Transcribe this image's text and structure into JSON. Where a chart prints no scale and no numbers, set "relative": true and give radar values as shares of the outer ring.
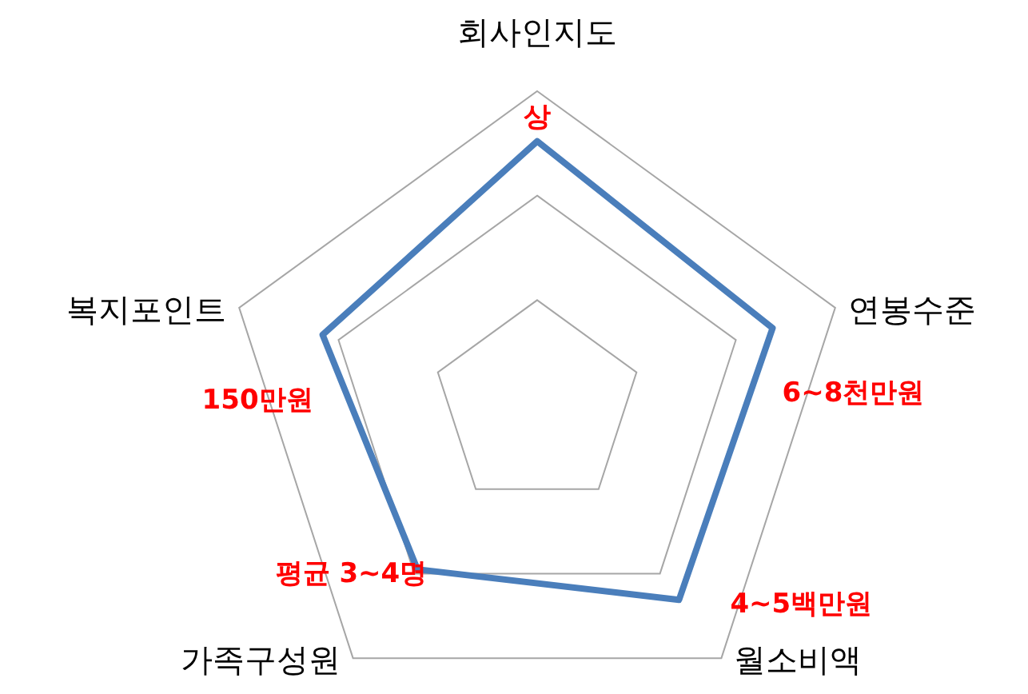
{
  "chart_data": {
    "type": "radar",
    "relative": true,
    "grid": true,
    "categories": [
      "회사인지도",
      "연봉수준",
      "월소비액",
      "가족구성원",
      "복지포인트"
    ],
    "series": [
      {
        "color": "#4a7ebb",
        "values": [
          0.84,
          0.79,
          0.77,
          0.65,
          0.72
        ]
      }
    ],
    "annotations": [
      "상",
      "6~8천만원",
      "4~5백만원",
      "평균 3~4명",
      "150만원"
    ]
  }
}
